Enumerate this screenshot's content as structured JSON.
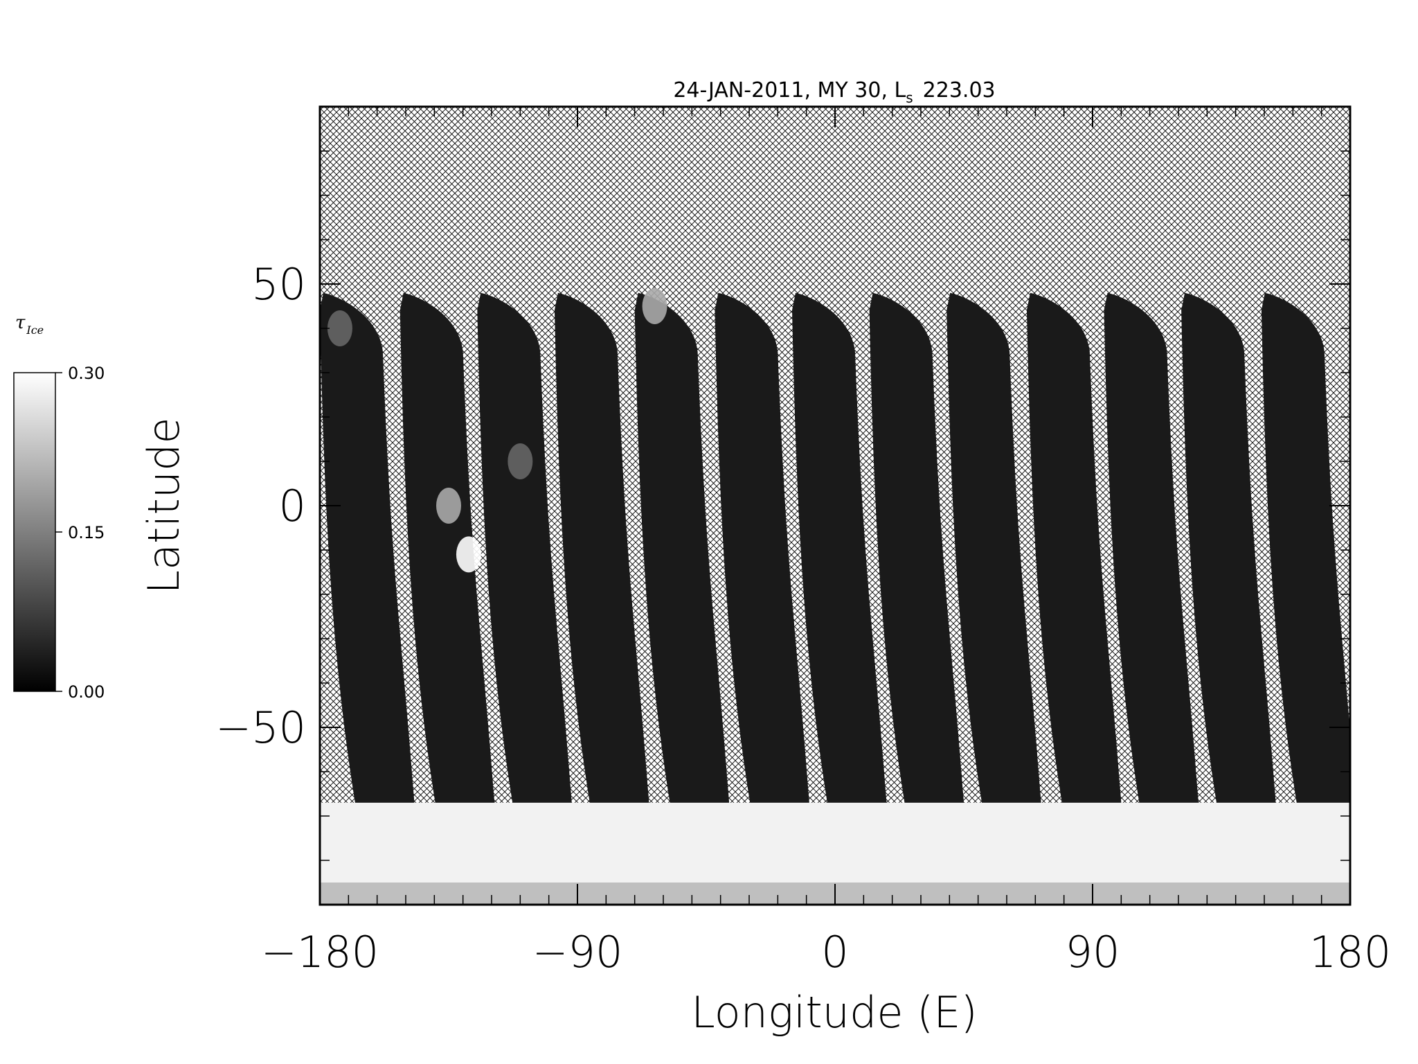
{
  "chart_data": {
    "type": "heatmap",
    "title": "24-JAN-2011, MY 30,  L",
    "title_sub": "s",
    "title_value": "223.03",
    "xlabel": "Longitude (E)",
    "ylabel": "Latitude",
    "xlim": [
      -180,
      180
    ],
    "ylim": [
      -90,
      90
    ],
    "xticks": [
      -180,
      -90,
      0,
      90,
      180
    ],
    "xtick_labels": [
      "−180",
      "−90",
      "0",
      "90",
      "180"
    ],
    "yticks": [
      -50,
      0,
      50
    ],
    "ytick_labels": [
      "−50",
      "0",
      "50"
    ],
    "no_data_pattern": "crosshatch",
    "colorbar": {
      "label_main": "τ",
      "label_sub": "Ice",
      "min": 0.0,
      "max": 0.3,
      "ticks": [
        "0.00",
        "0.15",
        "0.30"
      ],
      "colormap": "gray"
    },
    "swaths": {
      "count": 13,
      "start_longitudes": [
        -180,
        -152,
        -125,
        -98,
        -70,
        -42,
        -15,
        12,
        39,
        67,
        94,
        121,
        149
      ],
      "top_latitude": 48,
      "bottom_latitude": -67,
      "typical_opacity": 0.03,
      "bright_spots": [
        {
          "lon": -128,
          "lat": -11,
          "value": 0.3
        },
        {
          "lon": -135,
          "lat": 0,
          "value": 0.2
        },
        {
          "lon": -110,
          "lat": 10,
          "value": 0.12
        },
        {
          "lon": -63,
          "lat": 45,
          "value": 0.2
        },
        {
          "lon": -173,
          "lat": 40,
          "value": 0.12
        }
      ]
    },
    "polar_region": {
      "lat_top": -67,
      "lat_bottom": -90,
      "value": 0.3
    }
  }
}
